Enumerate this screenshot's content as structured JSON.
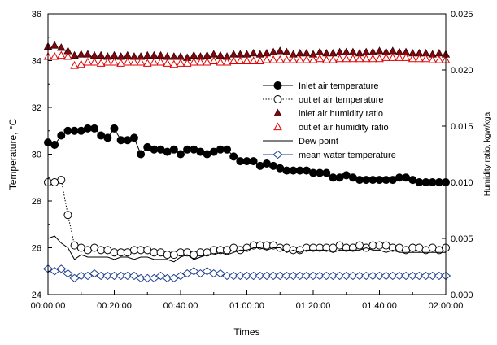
{
  "chart_data": {
    "type": "line",
    "xlabel": "Times",
    "ylabel": "Temperature, °C",
    "ylabel_right": "Humidity ratio, kgw/kga",
    "x_unit": "minutes",
    "xlim": [
      0,
      120
    ],
    "ylim": [
      24,
      36
    ],
    "ylim_right": [
      0,
      0.025
    ],
    "x_ticks": [
      0,
      20,
      40,
      60,
      80,
      100,
      120
    ],
    "x_tick_labels": [
      "00:00:00",
      "00:20:00",
      "00:40:00",
      "01:00:00",
      "01:20:00",
      "01:40:00",
      "02:00:00"
    ],
    "y_ticks": [
      24,
      26,
      28,
      30,
      32,
      34,
      36
    ],
    "y_tick_labels": [
      "24",
      "26",
      "28",
      "30",
      "32",
      "34",
      "36"
    ],
    "y_right_ticks": [
      0,
      0.005,
      0.01,
      0.015,
      0.02,
      0.025
    ],
    "y_right_tick_labels": [
      "0.000",
      "0.005",
      "0.010",
      "0.015",
      "0.020",
      "0.025"
    ],
    "legend_position": "right",
    "grid": false,
    "series": [
      {
        "name": "Inlet air temperature",
        "axis": "left",
        "marker": "filled-circle",
        "line": "solid",
        "color": "#000000",
        "x": [
          0,
          2,
          4,
          6,
          8,
          10,
          12,
          14,
          16,
          18,
          20,
          22,
          24,
          26,
          28,
          30,
          32,
          34,
          36,
          38,
          40,
          42,
          44,
          46,
          48,
          50,
          52,
          54,
          56,
          58,
          60,
          62,
          64,
          66,
          68,
          70,
          72,
          74,
          76,
          78,
          80,
          82,
          84,
          86,
          88,
          90,
          92,
          94,
          96,
          98,
          100,
          102,
          104,
          106,
          108,
          110,
          112,
          114,
          116,
          118,
          120
        ],
        "values": [
          30.5,
          30.4,
          30.8,
          31.0,
          31.0,
          31.0,
          31.1,
          31.1,
          30.8,
          30.7,
          31.1,
          30.6,
          30.6,
          30.7,
          30.0,
          30.3,
          30.2,
          30.2,
          30.1,
          30.2,
          30.0,
          30.2,
          30.2,
          30.1,
          30.0,
          30.1,
          30.2,
          30.2,
          29.9,
          29.7,
          29.7,
          29.7,
          29.5,
          29.6,
          29.5,
          29.4,
          29.3,
          29.3,
          29.3,
          29.3,
          29.2,
          29.2,
          29.2,
          29.0,
          29.0,
          29.1,
          29.0,
          28.9,
          28.9,
          28.9,
          28.9,
          28.9,
          28.9,
          29.0,
          29.0,
          28.9,
          28.8,
          28.8,
          28.8,
          28.8,
          28.8
        ]
      },
      {
        "name": "outlet air temperature",
        "axis": "left",
        "marker": "open-circle",
        "line": "dotted",
        "color": "#000000",
        "x": [
          0,
          2,
          4,
          6,
          8,
          10,
          12,
          14,
          16,
          18,
          20,
          22,
          24,
          26,
          28,
          30,
          32,
          34,
          36,
          38,
          40,
          42,
          44,
          46,
          48,
          50,
          52,
          54,
          56,
          58,
          60,
          62,
          64,
          66,
          68,
          70,
          72,
          74,
          76,
          78,
          80,
          82,
          84,
          86,
          88,
          90,
          92,
          94,
          96,
          98,
          100,
          102,
          104,
          106,
          108,
          110,
          112,
          114,
          116,
          118,
          120
        ],
        "values": [
          28.8,
          28.8,
          28.9,
          27.4,
          26.1,
          26.0,
          25.9,
          26.0,
          25.9,
          25.9,
          25.8,
          25.8,
          25.8,
          25.9,
          25.9,
          25.9,
          25.8,
          25.8,
          25.7,
          25.7,
          25.8,
          25.8,
          25.7,
          25.8,
          25.8,
          25.9,
          25.9,
          25.9,
          26.0,
          25.9,
          26.0,
          26.1,
          26.1,
          26.1,
          26.1,
          26.0,
          26.0,
          25.9,
          25.9,
          26.0,
          26.0,
          26.0,
          26.0,
          26.0,
          26.1,
          26.0,
          26.0,
          26.1,
          26.0,
          26.1,
          26.1,
          26.1,
          26.0,
          26.0,
          25.9,
          26.0,
          26.0,
          25.9,
          26.0,
          25.9,
          26.0
        ]
      },
      {
        "name": "inlet air humidity ratio",
        "axis": "right",
        "marker": "filled-triangle",
        "line": "none",
        "color": "#8B0000",
        "x": [
          0,
          2,
          4,
          6,
          8,
          10,
          12,
          14,
          16,
          18,
          20,
          22,
          24,
          26,
          28,
          30,
          32,
          34,
          36,
          38,
          40,
          42,
          44,
          46,
          48,
          50,
          52,
          54,
          56,
          58,
          60,
          62,
          64,
          66,
          68,
          70,
          72,
          74,
          76,
          78,
          80,
          82,
          84,
          86,
          88,
          90,
          92,
          94,
          96,
          98,
          100,
          102,
          104,
          106,
          108,
          110,
          112,
          114,
          116,
          118,
          120
        ],
        "values": [
          0.0221,
          0.0222,
          0.022,
          0.0217,
          0.0213,
          0.0214,
          0.0214,
          0.0213,
          0.0213,
          0.0212,
          0.0213,
          0.0212,
          0.0213,
          0.0212,
          0.0212,
          0.0213,
          0.0213,
          0.0213,
          0.0212,
          0.0212,
          0.0212,
          0.0211,
          0.0213,
          0.0212,
          0.0213,
          0.0214,
          0.0213,
          0.0212,
          0.0214,
          0.0214,
          0.0214,
          0.0215,
          0.0214,
          0.0215,
          0.0216,
          0.0217,
          0.0216,
          0.0214,
          0.0215,
          0.0215,
          0.0214,
          0.0216,
          0.0215,
          0.0215,
          0.0216,
          0.0216,
          0.0216,
          0.0215,
          0.0216,
          0.0216,
          0.0217,
          0.0216,
          0.0217,
          0.0216,
          0.0216,
          0.0215,
          0.0215,
          0.0215,
          0.0214,
          0.0215,
          0.0214
        ]
      },
      {
        "name": "outlet air humidity ratio",
        "axis": "right",
        "marker": "open-triangle",
        "line": "none",
        "color": "#E00000",
        "x": [
          0,
          2,
          4,
          6,
          8,
          10,
          12,
          14,
          16,
          18,
          20,
          22,
          24,
          26,
          28,
          30,
          32,
          34,
          36,
          38,
          40,
          42,
          44,
          46,
          48,
          50,
          52,
          54,
          56,
          58,
          60,
          62,
          64,
          66,
          68,
          70,
          72,
          74,
          76,
          78,
          80,
          82,
          84,
          86,
          88,
          90,
          92,
          94,
          96,
          98,
          100,
          102,
          104,
          106,
          108,
          110,
          112,
          114,
          116,
          118,
          120
        ],
        "values": [
          0.0212,
          0.0212,
          0.0213,
          0.0212,
          0.0204,
          0.0205,
          0.0207,
          0.0207,
          0.0206,
          0.0207,
          0.0207,
          0.0206,
          0.0207,
          0.0207,
          0.0207,
          0.0206,
          0.0207,
          0.0207,
          0.0206,
          0.0205,
          0.0206,
          0.0206,
          0.0207,
          0.0207,
          0.0207,
          0.0208,
          0.0207,
          0.0207,
          0.0208,
          0.0208,
          0.0208,
          0.0208,
          0.0208,
          0.0209,
          0.0209,
          0.0209,
          0.0209,
          0.0209,
          0.0209,
          0.0209,
          0.0209,
          0.021,
          0.0209,
          0.0209,
          0.021,
          0.021,
          0.021,
          0.021,
          0.021,
          0.021,
          0.021,
          0.0211,
          0.0211,
          0.0211,
          0.0211,
          0.021,
          0.021,
          0.021,
          0.0209,
          0.0209,
          0.0209
        ]
      },
      {
        "name": "Dew point",
        "axis": "left",
        "marker": "none",
        "line": "solid",
        "color": "#000000",
        "x": [
          0,
          2,
          4,
          6,
          8,
          10,
          12,
          14,
          16,
          18,
          20,
          22,
          24,
          26,
          28,
          30,
          32,
          34,
          36,
          38,
          40,
          42,
          44,
          46,
          48,
          50,
          52,
          54,
          56,
          58,
          60,
          62,
          64,
          66,
          68,
          70,
          72,
          74,
          76,
          78,
          80,
          82,
          84,
          86,
          88,
          90,
          92,
          94,
          96,
          98,
          100,
          102,
          104,
          106,
          108,
          110,
          112,
          114,
          116,
          118,
          120
        ],
        "values": [
          26.4,
          26.5,
          26.2,
          26.0,
          25.5,
          25.7,
          25.6,
          25.6,
          25.6,
          25.6,
          25.5,
          25.6,
          25.6,
          25.5,
          25.6,
          25.6,
          25.5,
          25.5,
          25.5,
          25.4,
          25.6,
          25.7,
          25.5,
          25.6,
          25.7,
          25.7,
          25.8,
          25.7,
          25.8,
          25.9,
          25.9,
          26.0,
          26.0,
          25.9,
          26.0,
          26.0,
          25.8,
          25.9,
          25.8,
          25.9,
          25.9,
          25.9,
          25.9,
          25.8,
          25.9,
          25.9,
          25.9,
          25.9,
          26.0,
          25.9,
          25.9,
          25.8,
          25.9,
          25.8,
          25.8,
          25.8,
          25.8,
          25.8,
          25.8,
          25.8,
          25.8
        ]
      },
      {
        "name": "mean water temperature",
        "axis": "left",
        "marker": "open-diamond",
        "line": "solid",
        "color": "#1F3F8F",
        "x": [
          0,
          2,
          4,
          6,
          8,
          10,
          12,
          14,
          16,
          18,
          20,
          22,
          24,
          26,
          28,
          30,
          32,
          34,
          36,
          38,
          40,
          42,
          44,
          46,
          48,
          50,
          52,
          54,
          56,
          58,
          60,
          62,
          64,
          66,
          68,
          70,
          72,
          74,
          76,
          78,
          80,
          82,
          84,
          86,
          88,
          90,
          92,
          94,
          96,
          98,
          100,
          102,
          104,
          106,
          108,
          110,
          112,
          114,
          116,
          118,
          120
        ],
        "values": [
          25.1,
          25.0,
          25.1,
          24.9,
          24.7,
          24.8,
          24.8,
          24.9,
          24.8,
          24.8,
          24.8,
          24.8,
          24.8,
          24.8,
          24.7,
          24.7,
          24.7,
          24.8,
          24.7,
          24.7,
          24.8,
          24.9,
          25.0,
          24.9,
          25.0,
          24.9,
          24.9,
          24.8,
          24.8,
          24.8,
          24.8,
          24.8,
          24.8,
          24.8,
          24.8,
          24.8,
          24.8,
          24.8,
          24.8,
          24.8,
          24.8,
          24.8,
          24.8,
          24.8,
          24.8,
          24.8,
          24.8,
          24.8,
          24.8,
          24.8,
          24.8,
          24.8,
          24.8,
          24.8,
          24.8,
          24.8,
          24.8,
          24.8,
          24.8,
          24.8,
          24.8
        ]
      }
    ]
  }
}
